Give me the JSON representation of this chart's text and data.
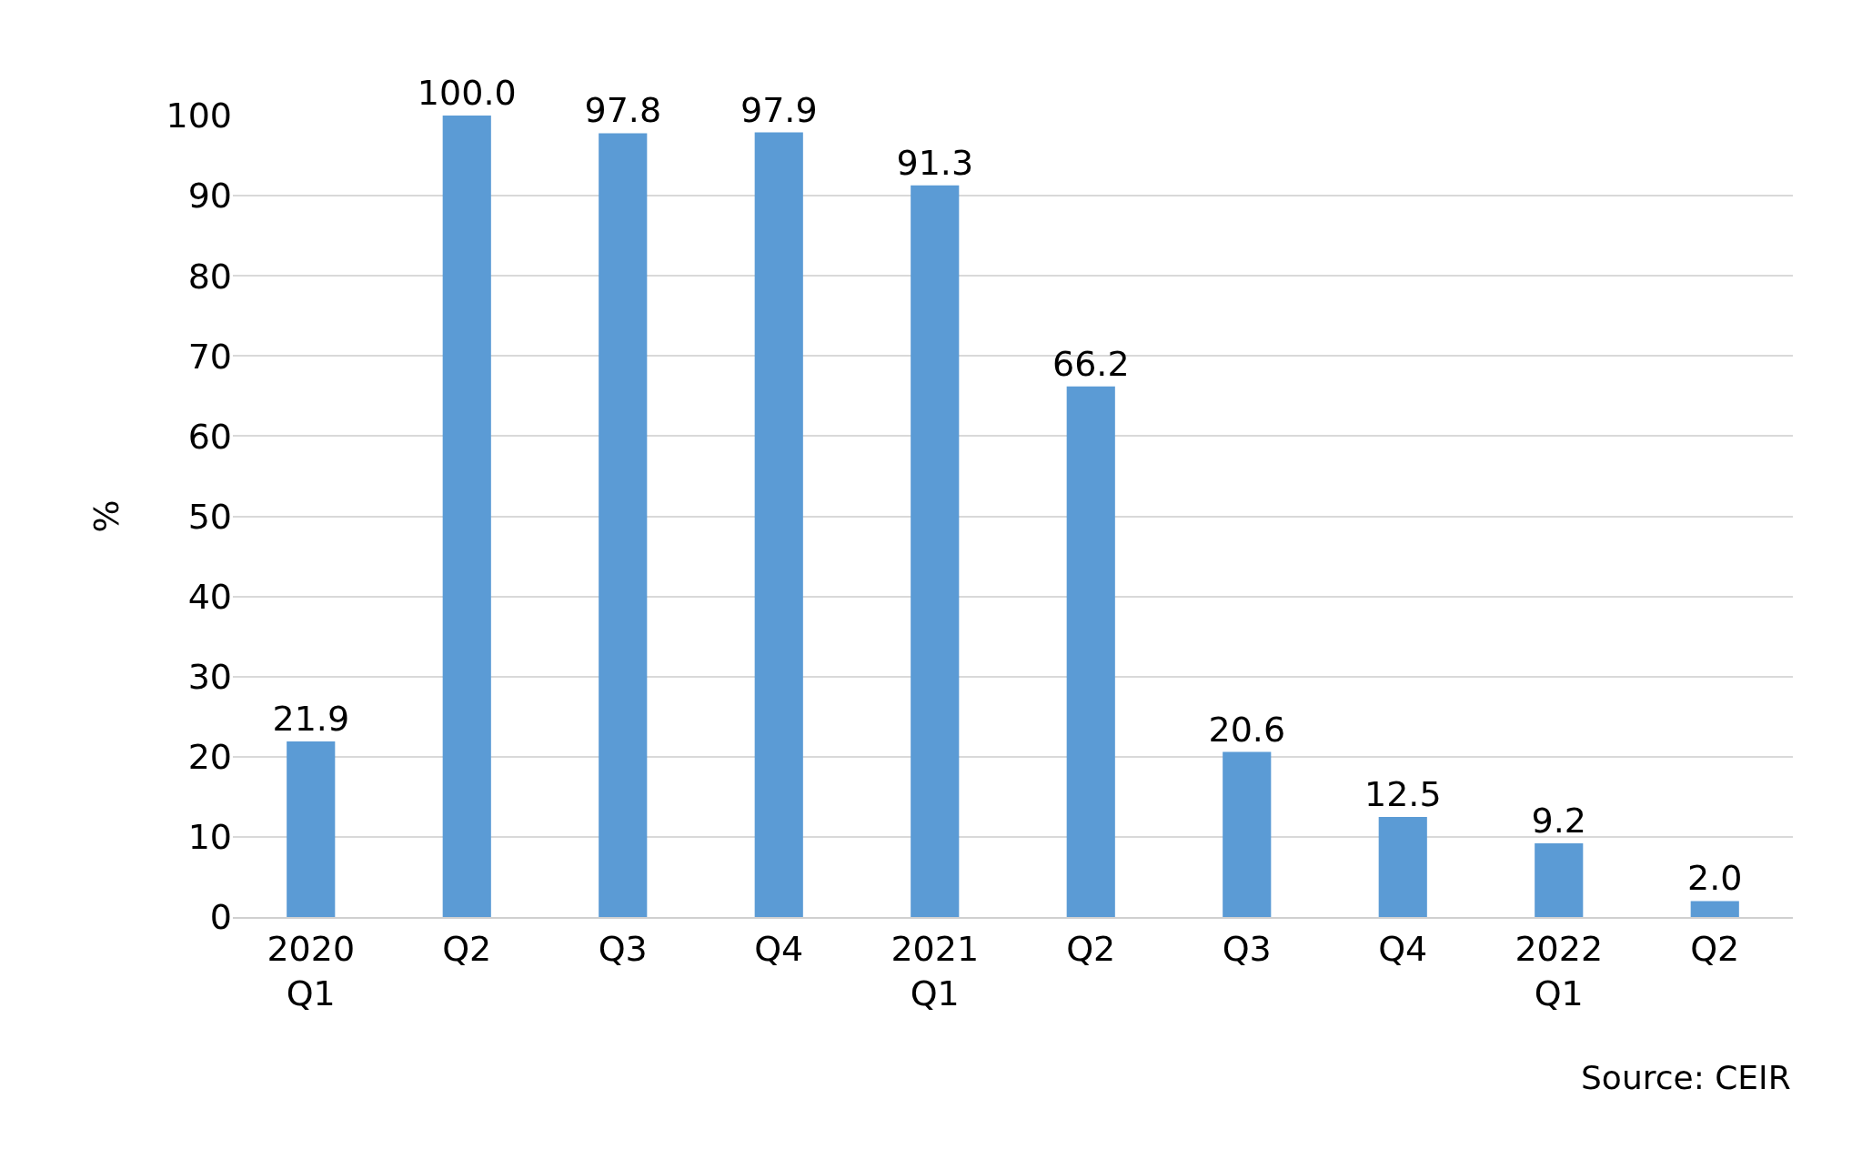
{
  "chart_data": {
    "type": "bar",
    "categories": [
      "2020\nQ1",
      "Q2",
      "Q3",
      "Q4",
      "2021\nQ1",
      "Q2",
      "Q3",
      "Q4",
      "2022\nQ1",
      "Q2"
    ],
    "values": [
      21.9,
      100.0,
      97.8,
      97.9,
      91.3,
      66.2,
      20.6,
      12.5,
      9.2,
      2.0
    ],
    "value_labels": [
      "21.9",
      "100.0",
      "97.8",
      "97.9",
      "91.3",
      "66.2",
      "20.6",
      "12.5",
      "9.2",
      "2.0"
    ],
    "color": "#5b9bd5",
    "ylabel": "%",
    "ylim": [
      0,
      100
    ],
    "yticks": [
      0,
      10,
      20,
      30,
      40,
      50,
      60,
      70,
      80,
      90,
      100
    ],
    "grid": "y",
    "annotations": [
      "Source: CEIR"
    ]
  }
}
